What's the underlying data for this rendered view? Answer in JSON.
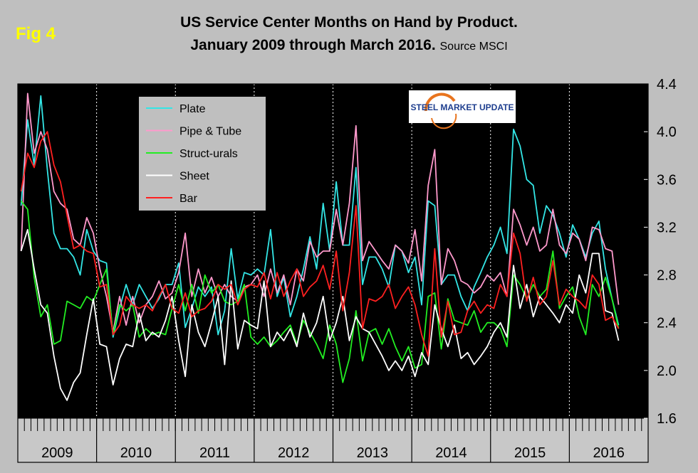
{
  "fig_label": "Fig 4",
  "chart_data": {
    "type": "line",
    "title_line1": "US Service Center Months on Hand by Product.",
    "title_line2": "January 2009 through March 2016.",
    "source": "Source MSCI",
    "logo_text": "STEEL MARKET UPDATE",
    "ylim": [
      1.6,
      4.4
    ],
    "yticks": [
      "1.6",
      "2.0",
      "2.4",
      "2.8",
      "3.2",
      "3.6",
      "4.0",
      "4.4"
    ],
    "years": [
      "2009",
      "2010",
      "2011",
      "2012",
      "2013",
      "2014",
      "2015",
      "2016"
    ],
    "x_start": "2009-01",
    "x_end": "2016-03",
    "legend_position": "top-left",
    "background_color": "#000000",
    "series": [
      {
        "name": "Plate",
        "color": "#33e6e6",
        "values": [
          3.38,
          4.1,
          3.72,
          4.3,
          3.68,
          3.15,
          3.02,
          3.02,
          2.95,
          2.8,
          3.18,
          3.0,
          2.92,
          2.9,
          2.28,
          2.52,
          2.72,
          2.55,
          2.72,
          2.62,
          2.52,
          2.6,
          2.72,
          2.72,
          2.9,
          2.36,
          2.52,
          2.7,
          2.62,
          2.7,
          2.3,
          2.5,
          3.02,
          2.6,
          2.82,
          2.8,
          2.85,
          2.8,
          3.18,
          2.62,
          2.78,
          2.45,
          2.62,
          2.85,
          3.12,
          2.85,
          3.4,
          3.0,
          3.58,
          3.05,
          3.05,
          3.7,
          2.72,
          2.95,
          2.95,
          2.85,
          2.7,
          3.05,
          3.0,
          2.82,
          2.95,
          2.55,
          3.42,
          3.38,
          2.72,
          2.8,
          2.8,
          2.62,
          2.5,
          2.7,
          2.82,
          2.95,
          3.05,
          3.2,
          2.98,
          4.02,
          3.88,
          3.6,
          3.55,
          3.15,
          3.38,
          3.3,
          3.15,
          2.95,
          3.22,
          3.1,
          2.95,
          3.15,
          3.25,
          2.85,
          2.6,
          2.38
        ]
      },
      {
        "name": "Pipe & Tube",
        "color": "#ff99cc",
        "values": [
          3.0,
          4.32,
          3.82,
          4.0,
          3.85,
          3.5,
          3.4,
          3.35,
          3.1,
          3.05,
          3.28,
          3.15,
          2.85,
          2.62,
          2.32,
          2.62,
          2.38,
          2.62,
          2.4,
          2.55,
          2.62,
          2.75,
          2.6,
          2.65,
          2.82,
          3.15,
          2.62,
          2.85,
          2.65,
          2.78,
          2.62,
          2.72,
          2.62,
          2.58,
          2.7,
          2.72,
          2.8,
          2.62,
          2.85,
          2.65,
          2.8,
          2.55,
          2.85,
          2.75,
          3.08,
          2.95,
          3.0,
          3.0,
          3.35,
          3.05,
          3.4,
          4.05,
          2.92,
          3.08,
          3.0,
          2.92,
          2.85,
          3.05,
          3.0,
          2.9,
          3.18,
          2.75,
          3.55,
          3.85,
          2.72,
          3.02,
          2.92,
          2.75,
          2.72,
          2.65,
          2.7,
          2.8,
          2.75,
          2.82,
          2.62,
          3.35,
          3.22,
          3.05,
          3.2,
          3.0,
          3.05,
          3.35,
          3.05,
          2.98,
          3.15,
          3.1,
          2.92,
          3.2,
          3.18,
          3.02,
          3.0,
          2.55
        ]
      },
      {
        "name": "Struct-urals",
        "color": "#22ee22",
        "values": [
          3.42,
          3.35,
          2.78,
          2.45,
          2.55,
          2.22,
          2.25,
          2.58,
          2.55,
          2.52,
          2.62,
          2.58,
          2.72,
          2.85,
          2.3,
          2.55,
          2.5,
          2.55,
          2.28,
          2.35,
          2.3,
          2.32,
          2.3,
          2.52,
          2.72,
          2.5,
          2.72,
          2.48,
          2.8,
          2.65,
          2.72,
          2.58,
          2.55,
          2.58,
          2.72,
          2.28,
          2.22,
          2.28,
          2.2,
          2.25,
          2.32,
          2.38,
          2.22,
          2.42,
          2.32,
          2.22,
          2.1,
          2.38,
          2.22,
          1.9,
          2.1,
          2.5,
          2.08,
          2.32,
          2.35,
          2.22,
          2.35,
          2.2,
          2.08,
          2.2,
          2.02,
          2.05,
          2.62,
          2.65,
          2.18,
          2.6,
          2.42,
          2.4,
          2.38,
          2.5,
          2.32,
          2.4,
          2.4,
          2.35,
          2.2,
          2.8,
          2.72,
          2.6,
          2.72,
          2.62,
          2.68,
          3.0,
          2.52,
          2.62,
          2.7,
          2.45,
          2.3,
          2.72,
          2.62,
          2.78,
          2.6,
          2.35
        ]
      },
      {
        "name": "Sheet",
        "color": "#ffffff",
        "values": [
          3.0,
          3.18,
          2.85,
          2.55,
          2.48,
          2.12,
          1.85,
          1.75,
          1.9,
          1.98,
          2.3,
          2.6,
          2.22,
          2.2,
          1.88,
          2.1,
          2.22,
          2.2,
          2.48,
          2.25,
          2.32,
          2.28,
          2.42,
          2.62,
          2.25,
          1.95,
          2.55,
          2.32,
          2.2,
          2.4,
          2.62,
          2.05,
          2.75,
          2.18,
          2.42,
          2.38,
          2.35,
          2.75,
          2.2,
          2.32,
          2.25,
          2.35,
          2.2,
          2.48,
          2.28,
          2.4,
          2.62,
          2.25,
          2.4,
          2.62,
          2.25,
          2.45,
          2.35,
          2.32,
          2.22,
          2.12,
          2.0,
          2.08,
          2.0,
          2.12,
          1.95,
          2.15,
          2.05,
          2.55,
          2.35,
          2.2,
          2.38,
          2.1,
          2.15,
          2.05,
          2.12,
          2.2,
          2.32,
          2.4,
          2.28,
          2.88,
          2.52,
          2.72,
          2.45,
          2.62,
          2.55,
          2.48,
          2.4,
          2.55,
          2.48,
          2.8,
          2.65,
          2.98,
          2.98,
          2.5,
          2.48,
          2.25
        ]
      },
      {
        "name": "Bar",
        "color": "#ff2020",
        "values": [
          3.5,
          3.82,
          3.7,
          3.92,
          4.0,
          3.72,
          3.58,
          3.3,
          3.02,
          3.05,
          3.0,
          2.98,
          2.7,
          2.72,
          2.3,
          2.38,
          2.62,
          2.55,
          2.52,
          2.55,
          2.5,
          2.62,
          2.72,
          2.52,
          2.48,
          2.65,
          2.45,
          2.5,
          2.52,
          2.58,
          2.72,
          2.68,
          2.72,
          2.55,
          2.68,
          2.72,
          2.7,
          2.82,
          2.6,
          2.82,
          2.62,
          2.75,
          2.85,
          2.62,
          2.7,
          2.75,
          2.88,
          2.68,
          3.0,
          2.5,
          2.82,
          3.38,
          2.35,
          2.6,
          2.58,
          2.62,
          2.72,
          2.52,
          2.62,
          2.7,
          2.55,
          2.3,
          2.12,
          3.02,
          2.28,
          2.58,
          2.3,
          2.32,
          2.5,
          2.58,
          2.48,
          2.55,
          2.52,
          2.72,
          2.62,
          3.15,
          2.98,
          2.58,
          2.78,
          2.55,
          2.62,
          2.92,
          2.55,
          2.68,
          2.62,
          2.58,
          2.52,
          2.8,
          2.72,
          2.42,
          2.45,
          2.35
        ]
      }
    ]
  }
}
